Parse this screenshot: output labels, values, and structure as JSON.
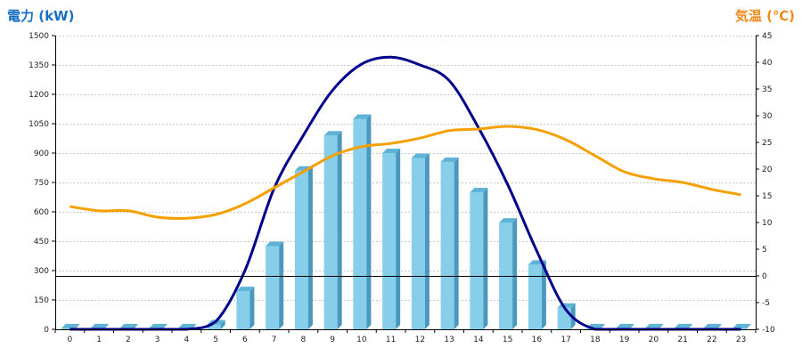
{
  "left_title": "電力 (kW)",
  "right_title": "気温 (℃)",
  "chart_data": {
    "type": "bar",
    "categories": [
      "0",
      "1",
      "2",
      "3",
      "4",
      "5",
      "6",
      "7",
      "8",
      "9",
      "10",
      "11",
      "12",
      "13",
      "14",
      "15",
      "16",
      "17",
      "18",
      "19",
      "20",
      "21",
      "22",
      "23"
    ],
    "y_left_label": "電力 (kW)",
    "y_right_label": "気温 (℃)",
    "ylim_left": [
      0,
      1500
    ],
    "ylim_right": [
      -10,
      45
    ],
    "yticks_left": [
      0,
      150,
      300,
      450,
      600,
      750,
      900,
      1050,
      1200,
      1350,
      1500
    ],
    "yticks_right": [
      -10,
      -5,
      0,
      5,
      10,
      15,
      20,
      25,
      30,
      35,
      40,
      45
    ],
    "grid": true,
    "series": [
      {
        "type": "bar",
        "axis": "left",
        "color": "#87ceeb",
        "values": [
          5,
          5,
          5,
          5,
          5,
          25,
          195,
          425,
          810,
          990,
          1075,
          900,
          875,
          855,
          700,
          545,
          330,
          110,
          5,
          5,
          5,
          5,
          5,
          5
        ]
      },
      {
        "type": "line",
        "axis": "left",
        "color": "#00008b",
        "values": [
          0,
          0,
          0,
          0,
          0,
          40,
          300,
          720,
          990,
          1220,
          1355,
          1390,
          1350,
          1270,
          1030,
          740,
          400,
          100,
          0,
          0,
          0,
          0,
          0,
          0
        ]
      },
      {
        "type": "line",
        "axis": "right",
        "color": "#f5a000",
        "values": [
          13,
          12.2,
          12.2,
          11,
          10.8,
          11.5,
          13.5,
          16.5,
          19.5,
          22.5,
          24.2,
          24.8,
          25.8,
          27.2,
          27.5,
          28,
          27.4,
          25.5,
          22.5,
          19.5,
          18.2,
          17.5,
          16.2,
          15.2
        ]
      }
    ]
  }
}
